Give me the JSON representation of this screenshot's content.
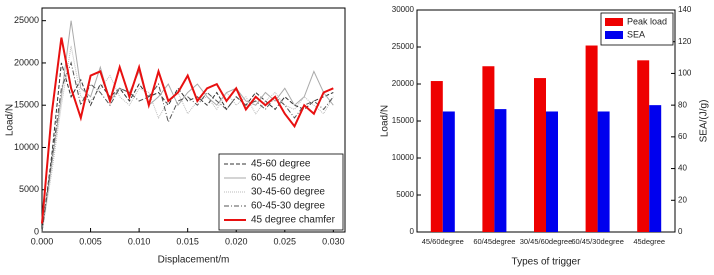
{
  "chart_data": [
    {
      "type": "line",
      "xlabel": "Displacement/m",
      "ylabel": "Load/N",
      "x": [
        0,
        0.001,
        0.002,
        0.003,
        0.004,
        0.005,
        0.006,
        0.007,
        0.008,
        0.009,
        0.01,
        0.011,
        0.012,
        0.013,
        0.014,
        0.015,
        0.016,
        0.017,
        0.018,
        0.019,
        0.02,
        0.021,
        0.022,
        0.023,
        0.024,
        0.025,
        0.026,
        0.027,
        0.028,
        0.029,
        0.03
      ],
      "xlim": [
        0,
        0.0312
      ],
      "ylim": [
        0,
        26500
      ],
      "xticks": [
        {
          "value": 0,
          "label": "0.000"
        },
        0.005,
        {
          "value": 0.01,
          "label": "0.010"
        },
        0.015,
        {
          "value": 0.02,
          "label": "0.020"
        },
        0.025,
        {
          "value": 0.03,
          "label": "0.030"
        }
      ],
      "yticks": [
        0,
        5000,
        10000,
        15000,
        20000,
        25000
      ],
      "legend": "lower right",
      "series": [
        {
          "name": "45-60 degree",
          "color": "#333333",
          "width": 1,
          "dash": "4,2",
          "values": [
            0,
            9000,
            20000,
            16000,
            18000,
            15000,
            17500,
            16000,
            17000,
            15500,
            17500,
            16000,
            16500,
            15000,
            17000,
            15500,
            16000,
            15000,
            16500,
            14500,
            16000,
            15000,
            16500,
            15500,
            14500,
            16000,
            15000,
            14500,
            15500,
            16000,
            16500
          ]
        },
        {
          "name": "60-45 degree",
          "color": "#aaaaaa",
          "width": 1,
          "dash": "none",
          "values": [
            0,
            8000,
            16000,
            25000,
            17000,
            16000,
            19500,
            15500,
            17000,
            16500,
            19000,
            15000,
            16000,
            17500,
            15000,
            16500,
            17500,
            16000,
            15000,
            16500,
            17000,
            15500,
            15000,
            16500,
            15500,
            17000,
            15000,
            16000,
            19000,
            16500,
            15000
          ]
        },
        {
          "name": "30-45-60 degree",
          "color": "#bbbbbb",
          "width": 1,
          "dash": "1,1",
          "values": [
            0,
            7000,
            15000,
            22000,
            16000,
            15500,
            17000,
            18500,
            16000,
            15000,
            17000,
            16500,
            13500,
            15500,
            16500,
            14000,
            15500,
            16000,
            14500,
            16500,
            15000,
            16000,
            14000,
            15500,
            16500,
            15000,
            14500,
            16000,
            15000,
            14000,
            16000
          ]
        },
        {
          "name": "60-45-30 degree",
          "color": "#555555",
          "width": 1,
          "dash": "5,2,1,2",
          "values": [
            0,
            8500,
            17000,
            20000,
            15000,
            17500,
            16500,
            15000,
            17000,
            16500,
            15500,
            16000,
            17500,
            13000,
            15500,
            16000,
            15000,
            16500,
            15500,
            14500,
            16000,
            15000,
            15500,
            14500,
            16000,
            15000,
            13500,
            15000,
            15500,
            14500,
            16000
          ]
        },
        {
          "name": "45 degree chamfer",
          "color": "#e81010",
          "width": 2,
          "dash": "none",
          "values": [
            1000,
            14000,
            23000,
            17000,
            13500,
            18500,
            19000,
            15500,
            19500,
            16000,
            19500,
            15000,
            19000,
            15500,
            16500,
            18500,
            15500,
            17000,
            17500,
            15500,
            17000,
            14500,
            16000,
            15000,
            16000,
            14000,
            12500,
            15000,
            14000,
            16500,
            17000
          ]
        }
      ]
    },
    {
      "type": "bar",
      "xlabel": "Types of trigger",
      "ylabel": "Load/N",
      "y2label": "SEA/(J/g)",
      "categories": [
        "45/60degree",
        "60/45degree",
        "30/45/60degree",
        "60/45/30degree",
        "45degree"
      ],
      "ylim": [
        0,
        30000
      ],
      "yticks": [
        0,
        5000,
        10000,
        15000,
        20000,
        25000,
        30000
      ],
      "y2lim": [
        0,
        140
      ],
      "y2ticks": [
        0,
        20,
        40,
        60,
        80,
        100,
        120,
        140
      ],
      "legend": "upper right",
      "series": [
        {
          "name": "Peak load",
          "color": "#ee0000",
          "values": [
            20400,
            22400,
            20800,
            25200,
            23200
          ]
        },
        {
          "name": "SEA",
          "color": "#0000ee",
          "axis": "y2",
          "values": [
            76,
            77.5,
            76,
            76,
            80
          ]
        }
      ]
    }
  ]
}
